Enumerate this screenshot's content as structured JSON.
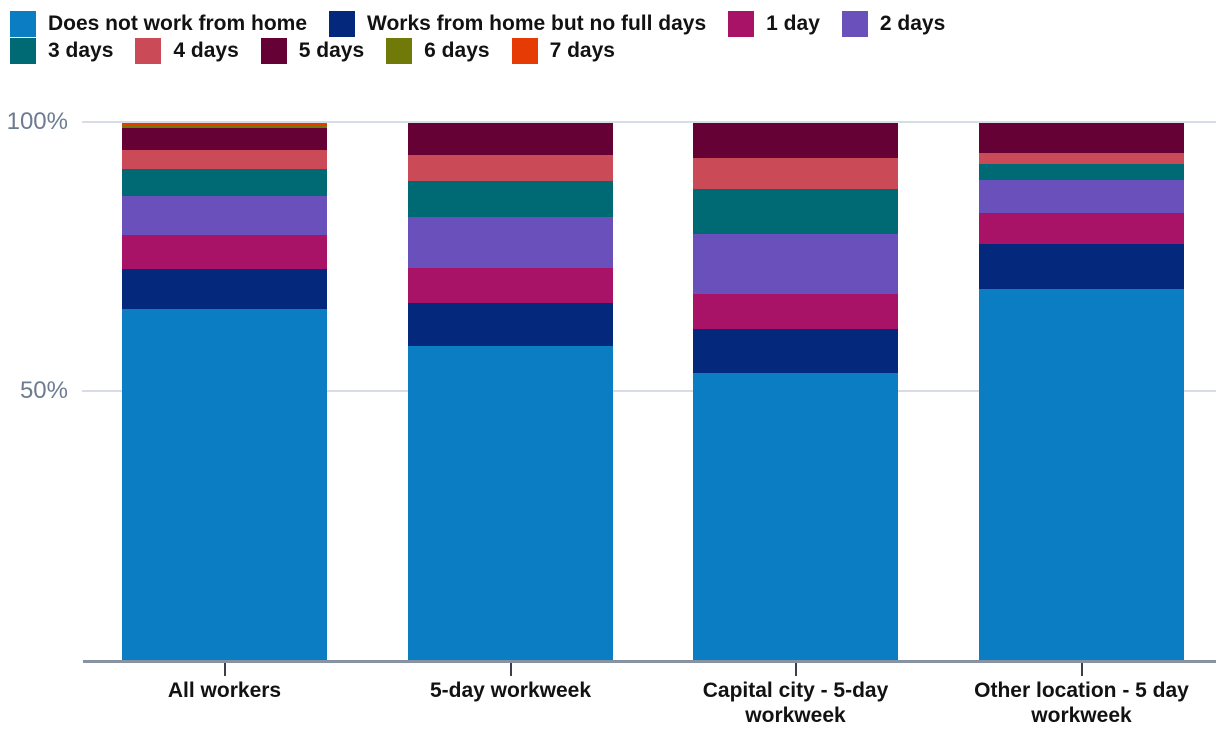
{
  "chart_data": {
    "type": "bar",
    "stacked": true,
    "percent": true,
    "title": "",
    "xlabel": "",
    "ylabel": "",
    "ylim": [
      0,
      100
    ],
    "yticks": [
      {
        "label": "100%",
        "value": 100
      },
      {
        "label": "50%",
        "value": 50
      }
    ],
    "grid": "horizontal",
    "legend_position": "top",
    "categories": [
      "All workers",
      "5-day workweek",
      "Capital city - 5-day workweek",
      "Other location - 5 day workweek"
    ],
    "series": [
      {
        "name": "Does not work from home",
        "color": "#0a7dc3",
        "values": [
          65.4,
          58.5,
          53.5,
          69.1
        ]
      },
      {
        "name": "Works from home but no full days",
        "color": "#04287c",
        "values": [
          7.4,
          8.0,
          8.2,
          8.4
        ]
      },
      {
        "name": "1 day",
        "color": "#a81368",
        "values": [
          6.4,
          6.6,
          6.6,
          5.8
        ]
      },
      {
        "name": "2 days",
        "color": "#6950bb",
        "values": [
          7.2,
          9.5,
          11.1,
          6.1
        ]
      },
      {
        "name": "3 days",
        "color": "#006a74",
        "values": [
          5.1,
          6.7,
          8.3,
          3.0
        ]
      },
      {
        "name": "4 days",
        "color": "#cb4a58",
        "values": [
          3.5,
          4.8,
          5.8,
          2.1
        ]
      },
      {
        "name": "5 days",
        "color": "#660136",
        "values": [
          4.0,
          5.9,
          6.5,
          5.5
        ]
      },
      {
        "name": "6 days",
        "color": "#6f7a08",
        "values": [
          0.5,
          0,
          0,
          0
        ]
      },
      {
        "name": "7 days",
        "color": "#e63b05",
        "values": [
          0.5,
          0,
          0,
          0
        ]
      }
    ]
  },
  "legend": {
    "rows": [
      [
        0,
        1,
        2,
        3
      ],
      [
        4,
        5,
        6,
        7,
        8
      ]
    ]
  },
  "axis_style": {
    "label_color": "#6d7c90",
    "grid_color": "#d8dce7",
    "line_color": "#8793a3",
    "tick_color": "#39404c"
  }
}
